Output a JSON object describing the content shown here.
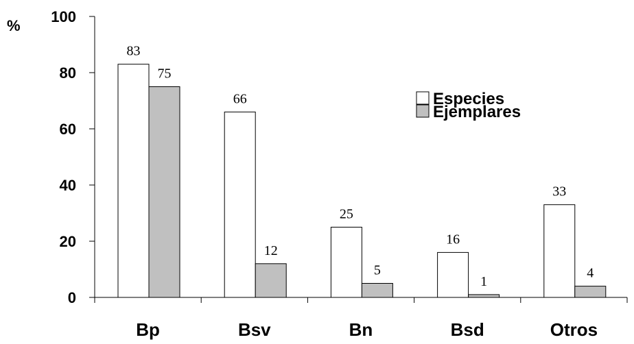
{
  "chart_data": {
    "type": "bar",
    "ylabel": "%",
    "ylim": [
      0,
      100
    ],
    "yticks": [
      "0",
      "20",
      "40",
      "60",
      "80",
      "100"
    ],
    "categories": [
      "Bp",
      "Bsv",
      "Bn",
      "Bsd",
      "Otros"
    ],
    "series": [
      {
        "name": "Especies",
        "values": [
          83,
          66,
          25,
          16,
          33
        ],
        "color": "#ffffff"
      },
      {
        "name": "Ejemplares",
        "values": [
          75,
          12,
          5,
          1,
          4
        ],
        "color": "#c0c0c0"
      }
    ],
    "legend_position": "top-right",
    "grid": false
  }
}
